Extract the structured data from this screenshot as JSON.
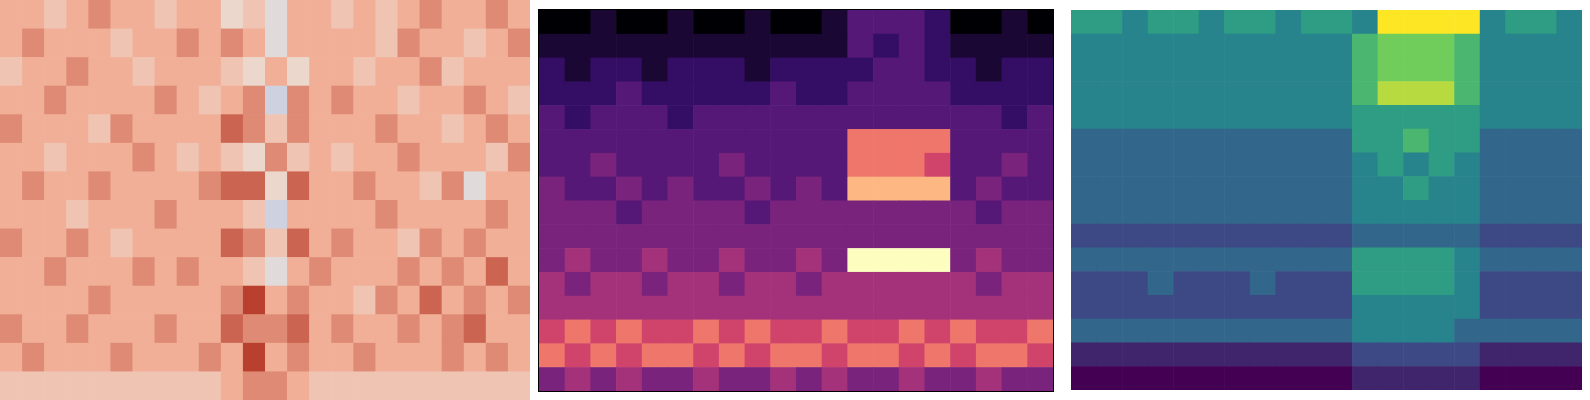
{
  "chart_data": [
    {
      "type": "heatmap",
      "tick_labels": false,
      "zlim": [
        0,
        9
      ],
      "cells": [
        [
          6,
          6,
          5,
          6,
          7,
          6,
          6,
          5,
          6,
          6,
          4,
          5,
          3,
          6,
          6,
          5,
          6,
          5,
          6,
          7,
          6,
          6,
          7,
          6
        ],
        [
          6,
          7,
          6,
          6,
          6,
          5,
          6,
          6,
          7,
          6,
          7,
          6,
          3,
          6,
          6,
          6,
          6,
          5,
          7,
          6,
          6,
          5,
          6,
          7
        ],
        [
          5,
          6,
          6,
          7,
          6,
          6,
          5,
          6,
          6,
          6,
          5,
          4,
          6,
          4,
          6,
          6,
          5,
          6,
          6,
          7,
          5,
          6,
          6,
          6
        ],
        [
          6,
          6,
          7,
          6,
          6,
          6,
          6,
          7,
          6,
          5,
          6,
          7,
          2,
          7,
          6,
          7,
          6,
          6,
          5,
          6,
          6,
          7,
          6,
          5
        ],
        [
          7,
          6,
          6,
          6,
          5,
          7,
          6,
          6,
          6,
          6,
          8,
          7,
          5,
          7,
          6,
          6,
          6,
          7,
          6,
          6,
          5,
          6,
          7,
          6
        ],
        [
          6,
          6,
          5,
          6,
          6,
          6,
          7,
          6,
          5,
          6,
          5,
          4,
          7,
          5,
          6,
          5,
          6,
          6,
          7,
          6,
          6,
          6,
          5,
          7
        ],
        [
          6,
          7,
          6,
          6,
          7,
          6,
          6,
          6,
          6,
          7,
          8,
          8,
          4,
          8,
          6,
          6,
          7,
          6,
          6,
          5,
          7,
          3,
          6,
          6
        ],
        [
          6,
          6,
          6,
          5,
          6,
          6,
          6,
          7,
          6,
          6,
          6,
          5,
          2,
          6,
          6,
          6,
          6,
          7,
          6,
          6,
          6,
          6,
          7,
          6
        ],
        [
          7,
          6,
          6,
          7,
          6,
          5,
          6,
          6,
          6,
          6,
          8,
          7,
          5,
          8,
          6,
          7,
          6,
          6,
          5,
          7,
          6,
          7,
          6,
          6
        ],
        [
          6,
          6,
          7,
          6,
          6,
          6,
          7,
          6,
          7,
          6,
          6,
          5,
          3,
          6,
          7,
          6,
          6,
          6,
          7,
          6,
          7,
          6,
          8,
          6
        ],
        [
          6,
          6,
          6,
          6,
          7,
          6,
          6,
          6,
          6,
          6,
          7,
          9,
          6,
          7,
          6,
          6,
          5,
          7,
          6,
          8,
          6,
          7,
          6,
          7
        ],
        [
          7,
          6,
          6,
          7,
          6,
          6,
          6,
          7,
          6,
          6,
          8,
          7,
          7,
          8,
          6,
          7,
          6,
          6,
          7,
          6,
          7,
          8,
          6,
          6
        ],
        [
          6,
          7,
          6,
          6,
          6,
          7,
          6,
          6,
          6,
          7,
          6,
          9,
          6,
          7,
          6,
          6,
          7,
          6,
          6,
          6,
          7,
          6,
          7,
          6
        ],
        [
          5,
          5,
          5,
          5,
          5,
          5,
          5,
          5,
          5,
          5,
          6,
          7,
          7,
          6,
          5,
          5,
          5,
          5,
          5,
          5,
          5,
          5,
          5,
          5
        ]
      ]
    },
    {
      "type": "heatmap",
      "tick_labels": false,
      "zlim": [
        0,
        9
      ],
      "cells": [
        [
          0,
          0,
          1,
          0,
          0,
          1,
          0,
          0,
          1,
          0,
          0,
          1,
          3,
          3,
          3,
          2,
          0,
          0,
          1,
          0
        ],
        [
          1,
          1,
          1,
          1,
          1,
          1,
          1,
          1,
          1,
          1,
          1,
          1,
          3,
          2,
          3,
          2,
          1,
          1,
          1,
          1
        ],
        [
          2,
          1,
          2,
          2,
          1,
          2,
          2,
          2,
          1,
          2,
          2,
          2,
          2,
          3,
          3,
          2,
          2,
          1,
          2,
          2
        ],
        [
          2,
          2,
          2,
          3,
          2,
          2,
          2,
          2,
          2,
          3,
          2,
          2,
          3,
          3,
          3,
          3,
          2,
          2,
          2,
          2
        ],
        [
          3,
          2,
          3,
          3,
          3,
          2,
          3,
          3,
          3,
          3,
          3,
          3,
          3,
          3,
          3,
          3,
          3,
          3,
          2,
          3
        ],
        [
          3,
          3,
          3,
          3,
          3,
          3,
          3,
          3,
          3,
          3,
          3,
          3,
          7,
          7,
          7,
          7,
          3,
          3,
          3,
          3
        ],
        [
          3,
          3,
          4,
          3,
          3,
          3,
          3,
          4,
          3,
          3,
          3,
          3,
          7,
          7,
          7,
          6,
          3,
          3,
          4,
          3
        ],
        [
          4,
          3,
          3,
          4,
          3,
          4,
          3,
          3,
          4,
          3,
          4,
          3,
          8,
          8,
          8,
          8,
          3,
          4,
          3,
          3
        ],
        [
          4,
          4,
          4,
          3,
          4,
          4,
          4,
          4,
          3,
          4,
          4,
          4,
          4,
          4,
          4,
          4,
          4,
          3,
          4,
          4
        ],
        [
          4,
          4,
          4,
          4,
          4,
          4,
          4,
          4,
          4,
          4,
          4,
          4,
          4,
          4,
          4,
          4,
          4,
          4,
          4,
          4
        ],
        [
          4,
          5,
          4,
          4,
          5,
          4,
          4,
          5,
          4,
          4,
          5,
          4,
          9,
          9,
          9,
          9,
          4,
          5,
          4,
          4
        ],
        [
          5,
          4,
          5,
          5,
          4,
          5,
          5,
          4,
          5,
          5,
          4,
          5,
          5,
          5,
          5,
          5,
          5,
          4,
          5,
          5
        ],
        [
          5,
          5,
          5,
          5,
          5,
          5,
          5,
          5,
          5,
          5,
          5,
          5,
          5,
          5,
          5,
          5,
          5,
          5,
          5,
          5
        ],
        [
          6,
          7,
          6,
          7,
          6,
          6,
          7,
          6,
          7,
          6,
          6,
          7,
          6,
          6,
          7,
          6,
          7,
          6,
          6,
          7
        ],
        [
          7,
          6,
          7,
          6,
          7,
          7,
          6,
          7,
          6,
          7,
          7,
          6,
          7,
          7,
          6,
          7,
          6,
          7,
          7,
          6
        ],
        [
          4,
          5,
          4,
          5,
          4,
          4,
          5,
          4,
          4,
          5,
          4,
          5,
          4,
          4,
          5,
          4,
          4,
          5,
          4,
          4
        ]
      ]
    },
    {
      "type": "heatmap",
      "tick_labels": false,
      "zlim": [
        0,
        9
      ],
      "cells": [
        [
          5,
          5,
          4,
          5,
          5,
          4,
          5,
          5,
          4,
          5,
          5,
          4,
          9,
          9,
          9,
          9,
          4,
          5,
          5,
          4
        ],
        [
          4,
          4,
          4,
          4,
          4,
          4,
          4,
          4,
          4,
          4,
          4,
          6,
          7,
          7,
          7,
          6,
          4,
          4,
          4,
          4
        ],
        [
          4,
          4,
          4,
          4,
          4,
          4,
          4,
          4,
          4,
          4,
          4,
          6,
          7,
          7,
          7,
          6,
          4,
          4,
          4,
          4
        ],
        [
          4,
          4,
          4,
          4,
          4,
          4,
          4,
          4,
          4,
          4,
          4,
          6,
          8,
          8,
          8,
          6,
          4,
          4,
          4,
          4
        ],
        [
          4,
          4,
          4,
          4,
          4,
          4,
          4,
          4,
          4,
          4,
          4,
          5,
          5,
          5,
          5,
          5,
          4,
          4,
          4,
          4
        ],
        [
          3,
          3,
          3,
          3,
          3,
          3,
          3,
          3,
          3,
          3,
          3,
          5,
          5,
          6,
          5,
          5,
          3,
          3,
          3,
          3
        ],
        [
          3,
          3,
          3,
          3,
          3,
          3,
          3,
          3,
          3,
          3,
          3,
          4,
          5,
          4,
          5,
          4,
          3,
          3,
          3,
          3
        ],
        [
          3,
          3,
          3,
          3,
          3,
          3,
          3,
          3,
          3,
          3,
          3,
          4,
          4,
          5,
          4,
          4,
          3,
          3,
          3,
          3
        ],
        [
          3,
          3,
          3,
          3,
          3,
          3,
          3,
          3,
          3,
          3,
          3,
          4,
          4,
          4,
          4,
          4,
          3,
          3,
          3,
          3
        ],
        [
          2,
          2,
          2,
          2,
          2,
          2,
          2,
          2,
          2,
          2,
          2,
          3,
          3,
          3,
          3,
          3,
          2,
          2,
          2,
          2
        ],
        [
          3,
          3,
          3,
          3,
          3,
          3,
          3,
          3,
          3,
          3,
          3,
          5,
          5,
          5,
          5,
          4,
          3,
          3,
          3,
          3
        ],
        [
          2,
          2,
          2,
          3,
          2,
          2,
          2,
          3,
          2,
          2,
          2,
          5,
          5,
          5,
          5,
          4,
          2,
          2,
          2,
          2
        ],
        [
          2,
          2,
          2,
          2,
          2,
          2,
          2,
          2,
          2,
          2,
          2,
          4,
          4,
          4,
          4,
          4,
          2,
          2,
          2,
          2
        ],
        [
          3,
          3,
          3,
          3,
          3,
          3,
          3,
          3,
          3,
          3,
          3,
          4,
          4,
          4,
          4,
          3,
          3,
          3,
          3,
          3
        ],
        [
          1,
          1,
          1,
          1,
          1,
          1,
          1,
          1,
          1,
          1,
          1,
          2,
          2,
          2,
          2,
          2,
          1,
          1,
          1,
          1
        ],
        [
          0,
          0,
          0,
          0,
          0,
          0,
          0,
          0,
          0,
          0,
          0,
          1,
          1,
          1,
          1,
          1,
          0,
          0,
          0,
          0
        ]
      ]
    }
  ]
}
